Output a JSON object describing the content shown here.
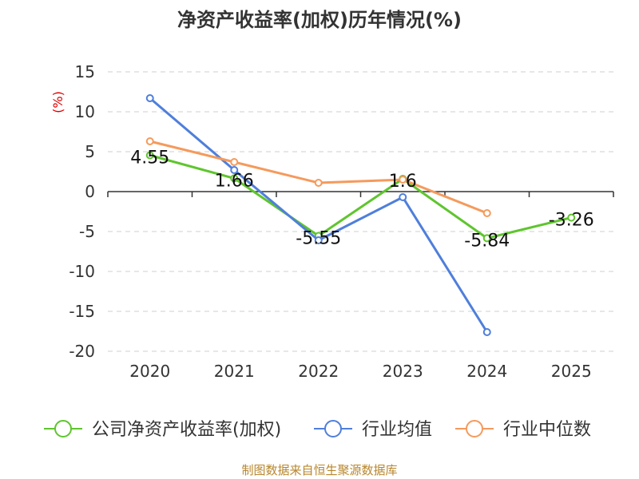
{
  "chart_data": {
    "type": "line",
    "title": "净资产收益率(加权)历年情况(%)",
    "ylabel": "(%)",
    "xlabel": "",
    "categories": [
      "2020",
      "2021",
      "2022",
      "2023",
      "2024",
      "2025"
    ],
    "ylim": [
      -20,
      15
    ],
    "yticks": [
      15,
      10,
      5,
      0,
      -5,
      -10,
      -15,
      -20
    ],
    "series": [
      {
        "name": "公司净资产收益率(加权)",
        "color": "#5fc52e",
        "values": [
          4.55,
          1.66,
          -5.55,
          1.6,
          -5.84,
          -3.26
        ],
        "data_labels": [
          "4.55",
          "1.66",
          "-5.55",
          "1.6",
          "-5.84",
          "-3.26"
        ]
      },
      {
        "name": "行业均值",
        "color": "#4f7fdb",
        "values": [
          11.7,
          2.7,
          -6.1,
          -0.7,
          -17.6,
          null
        ]
      },
      {
        "name": "行业中位数",
        "color": "#f59a5c",
        "values": [
          6.3,
          3.7,
          1.1,
          1.5,
          -2.7,
          null
        ]
      }
    ],
    "grid": true,
    "legend_position": "bottom"
  },
  "footer": {
    "source": "制图数据来自恒生聚源数据库"
  }
}
